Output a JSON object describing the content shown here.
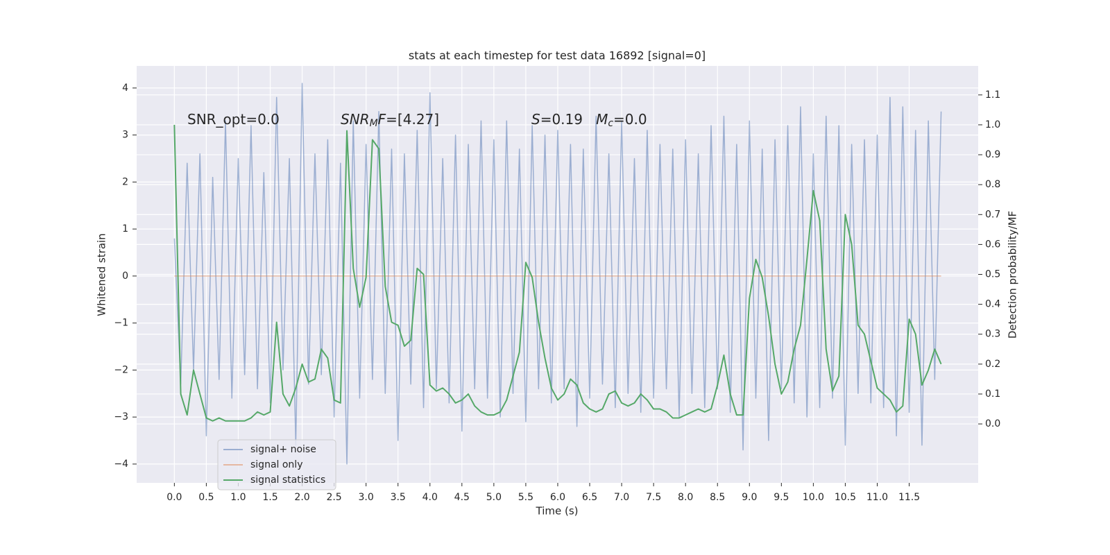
{
  "chart_data": {
    "type": "line",
    "title": "stats at each timestep for test data 16892 [signal=0]",
    "xlabel": "Time (s)",
    "ylabel": "Whitened strain",
    "y2label": "Detection probability/MF",
    "annotations": [
      {
        "segments": [
          "SNR_opt=0.0"
        ],
        "styles": [
          "normal"
        ]
      },
      {
        "segments": [
          "SNR",
          "M",
          "F",
          "=[4.27]"
        ],
        "styles": [
          "italic",
          "sub",
          "italic",
          "normal"
        ]
      },
      {
        "segments": [
          "S",
          "=0.19   ",
          "M",
          "c",
          "=0.0"
        ],
        "styles": [
          "italic",
          "normal",
          "italic",
          "sub",
          "normal"
        ]
      }
    ],
    "x": [
      0.0,
      0.1,
      0.2,
      0.3,
      0.4,
      0.5,
      0.6,
      0.7,
      0.8,
      0.9,
      1.0,
      1.1,
      1.2,
      1.3,
      1.4,
      1.5,
      1.6,
      1.7,
      1.8,
      1.9,
      2.0,
      2.1,
      2.2,
      2.3,
      2.4,
      2.5,
      2.6,
      2.7,
      2.8,
      2.9,
      3.0,
      3.1,
      3.2,
      3.3,
      3.4,
      3.5,
      3.6,
      3.7,
      3.8,
      3.9,
      4.0,
      4.1,
      4.2,
      4.3,
      4.4,
      4.5,
      4.6,
      4.7,
      4.8,
      4.9,
      5.0,
      5.1,
      5.2,
      5.3,
      5.4,
      5.5,
      5.6,
      5.7,
      5.8,
      5.9,
      6.0,
      6.1,
      6.2,
      6.3,
      6.4,
      6.5,
      6.6,
      6.7,
      6.8,
      6.9,
      7.0,
      7.1,
      7.2,
      7.3,
      7.4,
      7.5,
      7.6,
      7.7,
      7.8,
      7.9,
      8.0,
      8.1,
      8.2,
      8.3,
      8.4,
      8.5,
      8.6,
      8.7,
      8.8,
      8.9,
      9.0,
      9.1,
      9.2,
      9.3,
      9.4,
      9.5,
      9.6,
      9.7,
      9.8,
      9.9,
      10.0,
      10.1,
      10.2,
      10.3,
      10.4,
      10.5,
      10.6,
      10.7,
      10.8,
      10.9,
      11.0,
      11.1,
      11.2,
      11.3,
      11.4,
      11.5,
      11.6,
      11.7,
      11.8,
      11.9,
      12.0
    ],
    "series": [
      {
        "name": "signal+ noise",
        "color": "#4c72b0",
        "opacity": 0.5,
        "axis": "y",
        "values": [
          0.8,
          -2.3,
          2.4,
          -2.0,
          2.6,
          -3.4,
          2.1,
          -2.2,
          3.3,
          -2.6,
          2.5,
          -2.1,
          3.2,
          -2.4,
          2.2,
          -2.7,
          3.8,
          -2.0,
          2.5,
          -3.6,
          4.1,
          -2.3,
          2.6,
          -2.1,
          2.9,
          -3.0,
          2.4,
          -4.0,
          3.3,
          -2.6,
          2.8,
          -2.2,
          3.5,
          -2.5,
          2.7,
          -3.5,
          2.6,
          -2.3,
          3.1,
          -2.8,
          3.9,
          -2.4,
          2.5,
          -2.7,
          3.0,
          -3.3,
          2.8,
          -2.4,
          3.3,
          -2.6,
          2.9,
          -3.0,
          3.3,
          -2.5,
          2.7,
          -3.1,
          3.2,
          -2.4,
          3.0,
          -2.7,
          3.1,
          -2.4,
          2.8,
          -3.2,
          2.7,
          -2.6,
          3.4,
          -2.3,
          2.6,
          -2.8,
          3.3,
          -2.5,
          2.5,
          -2.9,
          3.1,
          -2.6,
          2.8,
          -2.4,
          2.7,
          -3.0,
          2.9,
          -2.5,
          2.6,
          -2.8,
          3.2,
          -2.4,
          3.4,
          -2.9,
          2.8,
          -3.7,
          3.3,
          -2.6,
          2.7,
          -3.5,
          2.9,
          -2.4,
          3.2,
          -2.7,
          3.6,
          -3.0,
          2.6,
          -2.8,
          3.4,
          -2.6,
          3.2,
          -3.6,
          2.8,
          -2.5,
          2.9,
          -2.7,
          3.0,
          -2.8,
          3.8,
          -3.4,
          3.6,
          -2.9,
          3.1,
          -3.6,
          3.3,
          -2.2,
          3.5
        ]
      },
      {
        "name": "signal only",
        "color": "#dd8452",
        "opacity": 0.5,
        "axis": "y",
        "values": [
          0,
          0,
          0,
          0,
          0,
          0,
          0,
          0,
          0,
          0,
          0,
          0,
          0,
          0,
          0,
          0,
          0,
          0,
          0,
          0,
          0,
          0,
          0,
          0,
          0,
          0,
          0,
          0,
          0,
          0,
          0,
          0,
          0,
          0,
          0,
          0,
          0,
          0,
          0,
          0,
          0,
          0,
          0,
          0,
          0,
          0,
          0,
          0,
          0,
          0,
          0,
          0,
          0,
          0,
          0,
          0,
          0,
          0,
          0,
          0,
          0,
          0,
          0,
          0,
          0,
          0,
          0,
          0,
          0,
          0,
          0,
          0,
          0,
          0,
          0,
          0,
          0,
          0,
          0,
          0,
          0,
          0,
          0,
          0,
          0,
          0,
          0,
          0,
          0,
          0,
          0,
          0,
          0,
          0,
          0,
          0,
          0,
          0,
          0,
          0,
          0,
          0,
          0,
          0,
          0,
          0,
          0,
          0,
          0,
          0,
          0,
          0,
          0,
          0,
          0,
          0,
          0,
          0,
          0,
          0,
          0
        ]
      },
      {
        "name": "signal statistics",
        "color": "#55a868",
        "opacity": 1,
        "axis": "y2",
        "values": [
          1.0,
          0.1,
          0.03,
          0.18,
          0.1,
          0.02,
          0.01,
          0.02,
          0.01,
          0.01,
          0.01,
          0.01,
          0.02,
          0.04,
          0.03,
          0.04,
          0.34,
          0.1,
          0.06,
          0.12,
          0.2,
          0.14,
          0.15,
          0.25,
          0.22,
          0.08,
          0.07,
          0.98,
          0.52,
          0.39,
          0.49,
          0.95,
          0.92,
          0.46,
          0.34,
          0.33,
          0.26,
          0.28,
          0.52,
          0.5,
          0.13,
          0.11,
          0.12,
          0.1,
          0.07,
          0.08,
          0.1,
          0.06,
          0.04,
          0.03,
          0.03,
          0.04,
          0.08,
          0.16,
          0.24,
          0.54,
          0.49,
          0.34,
          0.22,
          0.12,
          0.08,
          0.1,
          0.15,
          0.13,
          0.07,
          0.05,
          0.04,
          0.05,
          0.1,
          0.11,
          0.07,
          0.06,
          0.07,
          0.1,
          0.08,
          0.05,
          0.05,
          0.04,
          0.02,
          0.02,
          0.03,
          0.04,
          0.05,
          0.04,
          0.05,
          0.13,
          0.23,
          0.1,
          0.03,
          0.03,
          0.42,
          0.55,
          0.49,
          0.36,
          0.2,
          0.1,
          0.14,
          0.25,
          0.33,
          0.55,
          0.78,
          0.68,
          0.25,
          0.11,
          0.16,
          0.7,
          0.6,
          0.33,
          0.3,
          0.21,
          0.12,
          0.1,
          0.08,
          0.04,
          0.06,
          0.35,
          0.3,
          0.13,
          0.18,
          0.25,
          0.2
        ]
      }
    ],
    "xlim": [
      -0.59,
      12.58
    ],
    "xticks": [
      {
        "value": 0,
        "label": "0.0"
      },
      0.5,
      {
        "value": 1,
        "label": "1.0"
      },
      1.5,
      {
        "value": 2,
        "label": "2.0"
      },
      2.5,
      {
        "value": 3,
        "label": "3.0"
      },
      3.5,
      {
        "value": 4,
        "label": "4.0"
      },
      4.5,
      {
        "value": 5,
        "label": "5.0"
      },
      5.5,
      {
        "value": 6,
        "label": "6.0"
      },
      6.5,
      {
        "value": 7,
        "label": "7.0"
      },
      7.5,
      {
        "value": 8,
        "label": "8.0"
      },
      8.5,
      {
        "value": 9,
        "label": "9.0"
      },
      9.5,
      {
        "value": 10,
        "label": "10.0"
      },
      10.5,
      {
        "value": 11,
        "label": "11.0"
      },
      11.5
    ],
    "ylim": [
      -4.4,
      4.47
    ],
    "yticks": [
      {
        "value": -4,
        "label": "−4"
      },
      {
        "value": -3,
        "label": "−3"
      },
      {
        "value": -2,
        "label": "−2"
      },
      {
        "value": -1,
        "label": "−1"
      },
      0,
      1,
      2,
      3,
      4
    ],
    "y2lim": [
      -0.197,
      1.197
    ],
    "y2ticks": [
      {
        "value": 0,
        "label": "0.0"
      },
      0.1,
      0.2,
      0.3,
      0.4,
      0.5,
      0.6,
      0.7,
      0.8,
      0.9,
      {
        "value": 1,
        "label": "1.0"
      },
      1.1
    ],
    "grid": true,
    "legend": "lower left"
  }
}
